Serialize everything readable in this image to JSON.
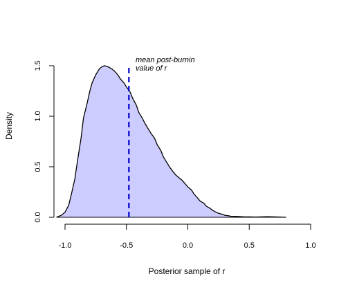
{
  "chart_data": {
    "type": "area",
    "title": "",
    "xlabel": "Posterior sample of r",
    "ylabel": "Density",
    "xlim": [
      -1.1,
      1.1
    ],
    "ylim": [
      0,
      1.5
    ],
    "x_ticks": [
      -1.0,
      -0.5,
      0.0,
      0.5,
      1.0
    ],
    "x_tick_labels": [
      "-1.0",
      "-0.5",
      "0.0",
      "0.5",
      "1.0"
    ],
    "y_ticks": [
      0.0,
      0.5,
      1.0,
      1.5
    ],
    "y_tick_labels": [
      "0.0",
      "0.5",
      "1.0",
      "1.5"
    ],
    "grid": false,
    "fill_color": "#ccccff",
    "line_color": "#000000",
    "series": [
      {
        "x": [
          -1.07,
          -1.03,
          -1.0,
          -0.97,
          -0.95,
          -0.92,
          -0.9,
          -0.87,
          -0.85,
          -0.82,
          -0.8,
          -0.78,
          -0.75,
          -0.72,
          -0.7,
          -0.68,
          -0.65,
          -0.62,
          -0.6,
          -0.57,
          -0.55,
          -0.52,
          -0.5,
          -0.47,
          -0.45,
          -0.42,
          -0.4,
          -0.37,
          -0.35,
          -0.32,
          -0.3,
          -0.27,
          -0.25,
          -0.22,
          -0.2,
          -0.17,
          -0.15,
          -0.12,
          -0.1,
          -0.07,
          -0.05,
          -0.02,
          0.0,
          0.03,
          0.05,
          0.08,
          0.1,
          0.13,
          0.15,
          0.18,
          0.2,
          0.23,
          0.25,
          0.28,
          0.3,
          0.33,
          0.35,
          0.4,
          0.45,
          0.5,
          0.55,
          0.6,
          0.65,
          0.7,
          0.75,
          0.8
        ],
        "y": [
          0.0,
          0.02,
          0.05,
          0.12,
          0.22,
          0.38,
          0.55,
          0.78,
          0.98,
          1.13,
          1.24,
          1.33,
          1.41,
          1.47,
          1.49,
          1.5,
          1.49,
          1.47,
          1.45,
          1.41,
          1.37,
          1.33,
          1.29,
          1.24,
          1.18,
          1.11,
          1.04,
          0.98,
          0.93,
          0.87,
          0.83,
          0.78,
          0.72,
          0.66,
          0.6,
          0.54,
          0.5,
          0.45,
          0.42,
          0.39,
          0.37,
          0.33,
          0.3,
          0.27,
          0.23,
          0.19,
          0.16,
          0.14,
          0.11,
          0.09,
          0.07,
          0.05,
          0.04,
          0.03,
          0.02,
          0.015,
          0.01,
          0.008,
          0.005,
          0.004,
          0.003,
          0.004,
          0.006,
          0.004,
          0.002,
          0.0
        ]
      }
    ],
    "reference_line": {
      "x": -0.48,
      "color": "#0000cc",
      "style": "dashed"
    },
    "annotation": {
      "lines": [
        "mean post-burnin",
        "value of r"
      ]
    }
  }
}
